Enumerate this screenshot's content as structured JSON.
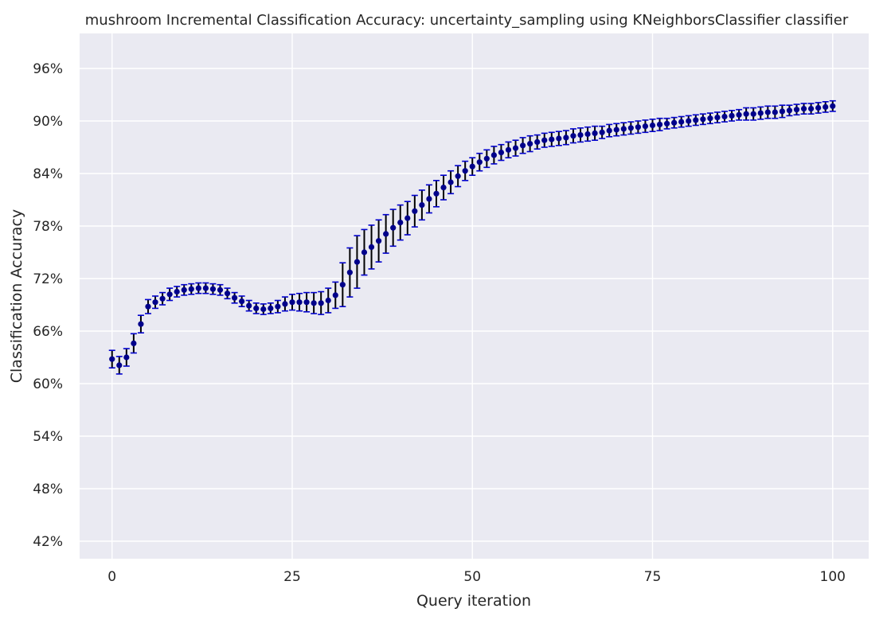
{
  "chart_data": {
    "type": "scatter",
    "title": "mushroom Incremental Classification Accuracy: uncertainty_sampling using KNeighborsClassifier classifier",
    "xlabel": "Query iteration",
    "ylabel": "Classification Accuracy",
    "xlim": [
      -4.5,
      105
    ],
    "ylim": [
      0.4,
      1.0
    ],
    "x_ticks": [
      0,
      25,
      50,
      75,
      100
    ],
    "x_tick_labels": [
      "0",
      "25",
      "50",
      "75",
      "100"
    ],
    "y_ticks": [
      0.42,
      0.48,
      0.54,
      0.6,
      0.66,
      0.72,
      0.78,
      0.84,
      0.9,
      0.96
    ],
    "y_tick_labels": [
      "42%",
      "48%",
      "54%",
      "60%",
      "66%",
      "72%",
      "78%",
      "84%",
      "90%",
      "96%"
    ],
    "grid": true,
    "background_color": "#eaeaf2",
    "marker_color": "#00008b",
    "errorbar_color": "#000000",
    "cap_color": "#0000cd",
    "series": [
      {
        "x": [
          0,
          1,
          2,
          3,
          4,
          5,
          6,
          7,
          8,
          9,
          10,
          11,
          12,
          13,
          14,
          15,
          16,
          17,
          18,
          19,
          20,
          21,
          22,
          23,
          24,
          25,
          26,
          27,
          28,
          29,
          30,
          31,
          32,
          33,
          34,
          35,
          36,
          37,
          38,
          39,
          40,
          41,
          42,
          43,
          44,
          45,
          46,
          47,
          48,
          49,
          50,
          51,
          52,
          53,
          54,
          55,
          56,
          57,
          58,
          59,
          60,
          61,
          62,
          63,
          64,
          65,
          66,
          67,
          68,
          69,
          70,
          71,
          72,
          73,
          74,
          75,
          76,
          77,
          78,
          79,
          80,
          81,
          82,
          83,
          84,
          85,
          86,
          87,
          88,
          89,
          90,
          91,
          92,
          93,
          94,
          95,
          96,
          97,
          98,
          99,
          100
        ],
        "y": [
          0.628,
          0.621,
          0.63,
          0.646,
          0.668,
          0.688,
          0.693,
          0.697,
          0.702,
          0.705,
          0.707,
          0.708,
          0.709,
          0.709,
          0.708,
          0.707,
          0.703,
          0.698,
          0.694,
          0.689,
          0.686,
          0.685,
          0.686,
          0.688,
          0.691,
          0.693,
          0.693,
          0.693,
          0.692,
          0.692,
          0.695,
          0.701,
          0.713,
          0.727,
          0.739,
          0.75,
          0.756,
          0.763,
          0.771,
          0.778,
          0.784,
          0.789,
          0.797,
          0.804,
          0.811,
          0.817,
          0.824,
          0.83,
          0.837,
          0.843,
          0.848,
          0.853,
          0.857,
          0.861,
          0.864,
          0.867,
          0.869,
          0.872,
          0.874,
          0.876,
          0.878,
          0.879,
          0.88,
          0.881,
          0.883,
          0.884,
          0.885,
          0.886,
          0.887,
          0.889,
          0.89,
          0.891,
          0.892,
          0.893,
          0.894,
          0.895,
          0.896,
          0.897,
          0.898,
          0.899,
          0.9,
          0.901,
          0.902,
          0.903,
          0.904,
          0.905,
          0.906,
          0.907,
          0.908,
          0.908,
          0.909,
          0.91,
          0.91,
          0.911,
          0.912,
          0.913,
          0.914,
          0.914,
          0.915,
          0.916,
          0.917
        ],
        "err": [
          0.01,
          0.01,
          0.01,
          0.011,
          0.01,
          0.008,
          0.007,
          0.007,
          0.007,
          0.006,
          0.006,
          0.006,
          0.006,
          0.006,
          0.006,
          0.006,
          0.006,
          0.006,
          0.006,
          0.006,
          0.006,
          0.006,
          0.006,
          0.007,
          0.008,
          0.009,
          0.01,
          0.011,
          0.012,
          0.013,
          0.014,
          0.015,
          0.025,
          0.028,
          0.03,
          0.026,
          0.025,
          0.024,
          0.022,
          0.021,
          0.02,
          0.019,
          0.018,
          0.017,
          0.016,
          0.015,
          0.014,
          0.013,
          0.012,
          0.011,
          0.01,
          0.01,
          0.01,
          0.01,
          0.009,
          0.009,
          0.009,
          0.009,
          0.009,
          0.008,
          0.008,
          0.008,
          0.008,
          0.008,
          0.008,
          0.008,
          0.008,
          0.008,
          0.007,
          0.007,
          0.007,
          0.007,
          0.007,
          0.007,
          0.007,
          0.007,
          0.007,
          0.006,
          0.006,
          0.006,
          0.006,
          0.006,
          0.006,
          0.006,
          0.006,
          0.006,
          0.006,
          0.006,
          0.007,
          0.007,
          0.007,
          0.007,
          0.007,
          0.007,
          0.006,
          0.006,
          0.006,
          0.006,
          0.006,
          0.006,
          0.006
        ]
      }
    ]
  }
}
